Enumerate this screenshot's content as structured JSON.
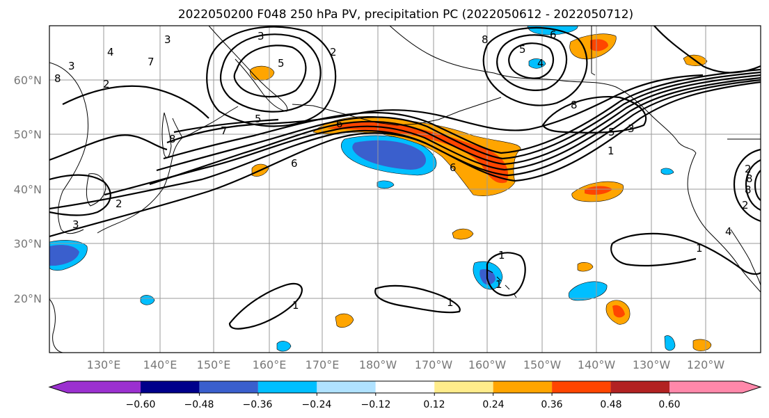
{
  "title": "2022050200 F048 250 hPa PV, precipitation PC (2022050612 - 2022050712)",
  "lon_ticks": [
    "130°E",
    "140°E",
    "150°E",
    "160°E",
    "170°E",
    "180°W",
    "170°W",
    "160°W",
    "150°W",
    "140°W",
    "130°W",
    "120°W"
  ],
  "lat_ticks": [
    "60°N",
    "50°N",
    "40°N",
    "30°N",
    "20°N"
  ],
  "colorbar": {
    "colors": [
      "#9b30d0",
      "#00008b",
      "#3a5fcd",
      "#00bfff",
      "#b0e2ff",
      "#ffffff",
      "#ffec8b",
      "#ffa500",
      "#ff4500",
      "#b22222",
      "#ff88aa"
    ],
    "labels": [
      "−0.60",
      "−0.48",
      "−0.36",
      "−0.24",
      "−0.12",
      "0.12",
      "0.24",
      "0.36",
      "0.48",
      "0.60"
    ]
  },
  "contour_labels": [
    "3",
    "8",
    "4",
    "7",
    "3",
    "2",
    "3",
    "2",
    "8",
    "5",
    "6",
    "4",
    "8",
    "6",
    "5",
    "7",
    "8",
    "5",
    "6",
    "6",
    "1",
    "5",
    "3",
    "2",
    "1",
    "4",
    "2",
    "3",
    "1",
    "1",
    "1",
    "1",
    "2",
    "8",
    "8"
  ],
  "contour_levels": [
    1,
    2,
    3,
    4,
    5,
    6,
    7,
    8
  ]
}
